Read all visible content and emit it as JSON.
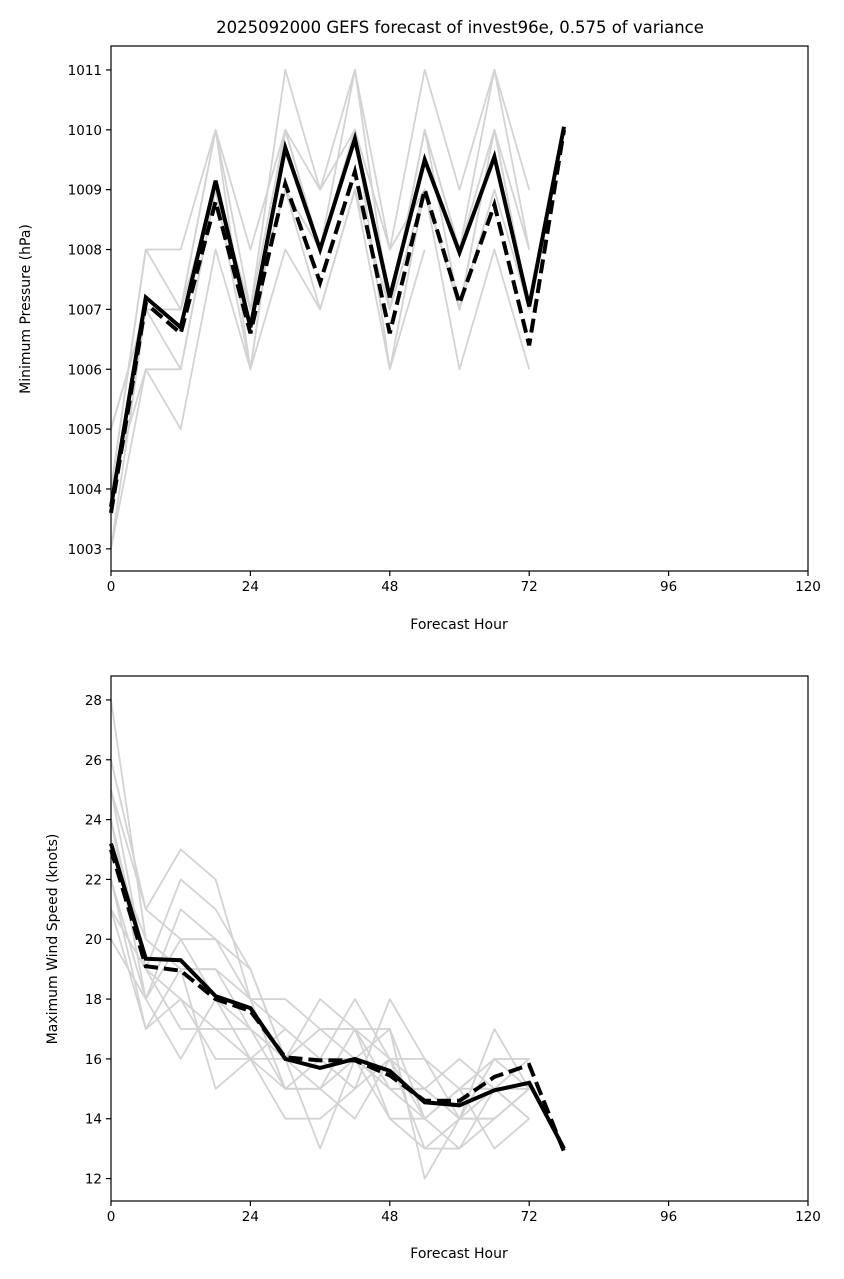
{
  "title": "2025092000 GEFS forecast of invest96e, 0.575 of variance",
  "colors": {
    "members": "#d3d3d3",
    "mean": "#000000",
    "background": "#ffffff"
  },
  "chart_data": [
    {
      "type": "line",
      "id": "pressure",
      "xlabel": "Forecast Hour",
      "ylabel": "Minimum Pressure (hPa)",
      "xlim": [
        0,
        120
      ],
      "ylim": [
        1002.63,
        1011.4
      ],
      "xticks": [
        0,
        24,
        48,
        72,
        96,
        120
      ],
      "yticks": [
        1003,
        1004,
        1005,
        1006,
        1007,
        1008,
        1009,
        1010,
        1011
      ],
      "x": [
        0,
        6,
        12,
        18,
        24,
        30,
        36,
        42,
        48,
        54,
        60,
        66,
        72,
        78
      ],
      "series": [
        {
          "name": "solid",
          "style": "solid",
          "values": [
            1003.7,
            1007.2,
            1006.7,
            1009.15,
            1006.7,
            1009.7,
            1008.0,
            1009.85,
            1007.2,
            1009.5,
            1007.95,
            1009.55,
            1007.05,
            1010.05
          ]
        },
        {
          "name": "dashed",
          "style": "dashed",
          "values": [
            1003.6,
            1007.1,
            1006.6,
            1008.8,
            1006.6,
            1009.1,
            1007.45,
            1009.3,
            1006.6,
            1009.0,
            1007.1,
            1008.75,
            1006.4,
            1010.0
          ]
        }
      ],
      "members": [
        [
          1005,
          1007,
          1007,
          1010,
          1007,
          1011,
          1009,
          1011,
          1008,
          1011,
          1009,
          1011,
          1009
        ],
        [
          1003,
          1006,
          1006,
          1009,
          1006,
          1010,
          1009,
          1010,
          1007,
          1010,
          1008,
          1011,
          1008
        ],
        [
          1004,
          1008,
          1008,
          1010,
          1008,
          1010,
          1008,
          1010,
          1007,
          1010,
          1008,
          1010,
          1007
        ],
        [
          1004,
          1006,
          1005,
          1008,
          1006,
          1008,
          1007,
          1009,
          1006,
          1008
        ],
        [
          1005,
          1007,
          1006,
          1009,
          1007,
          1009,
          1007,
          1009,
          1007,
          1009,
          1006,
          1008,
          1006
        ],
        [
          1004,
          1008,
          1007,
          1009,
          1007,
          1010,
          1008,
          1010,
          1008,
          1009,
          1007,
          1009,
          1007
        ],
        [
          1003,
          1007,
          1007,
          1010,
          1006,
          1010,
          1008,
          1011,
          1007,
          1010,
          1007,
          1010,
          1007
        ],
        [
          1005,
          1007,
          1007,
          1009,
          1007,
          1009,
          1008,
          1010,
          1006,
          1009,
          1007,
          1010,
          1008
        ]
      ]
    },
    {
      "type": "line",
      "id": "wind",
      "xlabel": "Forecast Hour",
      "ylabel": "Maximum Wind Speed (knots)",
      "xlim": [
        0,
        120
      ],
      "ylim": [
        11.25,
        28.8
      ],
      "xticks": [
        0,
        24,
        48,
        72,
        96,
        120
      ],
      "yticks": [
        12,
        14,
        16,
        18,
        20,
        22,
        24,
        26,
        28
      ],
      "x": [
        0,
        6,
        12,
        18,
        24,
        30,
        36,
        42,
        48,
        54,
        60,
        66,
        72,
        78
      ],
      "series": [
        {
          "name": "solid",
          "style": "solid",
          "values": [
            23.2,
            19.35,
            19.3,
            18.1,
            17.7,
            16.0,
            15.7,
            16.0,
            15.6,
            14.55,
            14.45,
            14.95,
            15.2,
            13.0
          ]
        },
        {
          "name": "dashed",
          "style": "dashed",
          "values": [
            23.0,
            19.1,
            18.95,
            18.0,
            17.6,
            16.05,
            15.95,
            15.95,
            15.45,
            14.6,
            14.6,
            15.4,
            15.8,
            12.9
          ]
        }
      ],
      "members": [
        [
          28,
          20,
          19,
          19,
          17,
          16,
          17,
          17,
          15,
          15,
          14,
          17,
          15
        ],
        [
          26,
          21,
          23,
          22,
          18,
          17,
          16,
          15,
          18,
          16,
          15,
          16,
          16
        ],
        [
          25,
          19,
          22,
          21,
          19,
          16,
          18,
          17,
          17,
          14,
          13,
          15,
          14
        ],
        [
          24,
          18,
          20,
          18,
          17,
          15,
          15,
          16,
          17,
          12,
          14,
          14,
          15
        ],
        [
          22,
          18,
          21,
          20,
          19,
          16,
          15,
          17,
          14,
          14,
          15,
          16,
          16
        ],
        [
          21,
          17,
          18,
          16,
          16,
          16,
          13,
          16,
          15,
          14,
          15,
          13,
          14
        ],
        [
          23,
          20,
          19,
          19,
          18,
          15,
          16,
          18,
          16,
          15,
          14,
          15,
          15
        ],
        [
          20,
          18,
          16,
          18,
          16,
          14,
          14,
          15,
          16,
          13,
          13,
          14,
          15
        ],
        [
          24,
          19,
          18,
          17,
          17,
          16,
          17,
          16,
          15,
          15,
          16,
          15,
          16
        ],
        [
          22,
          17,
          19,
          15,
          16,
          15,
          15,
          14,
          16,
          16,
          14,
          16,
          15
        ],
        [
          25,
          21,
          20,
          20,
          18,
          18,
          17,
          17,
          16,
          14,
          15,
          15,
          14
        ],
        [
          21,
          19,
          17,
          17,
          16,
          17,
          16,
          16,
          14,
          13,
          14,
          14,
          15
        ]
      ]
    }
  ]
}
